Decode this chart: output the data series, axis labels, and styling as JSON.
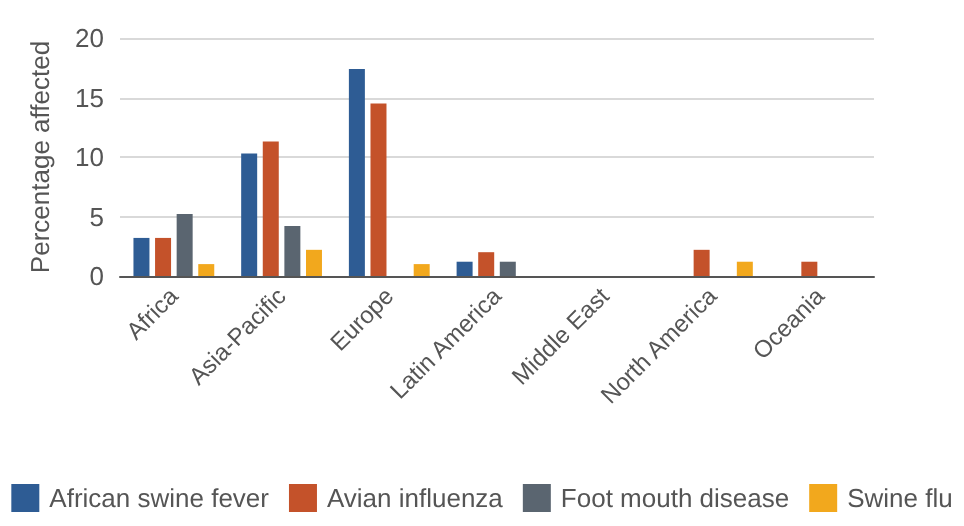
{
  "chart_data": {
    "type": "bar",
    "ylabel": "Percentage affected",
    "categories": [
      "Africa",
      "Asia-Pacific",
      "Europe",
      "Latin America",
      "Middle East",
      "North America",
      "Oceania"
    ],
    "series": [
      {
        "name": "African swine fever",
        "color": "#2e5c94",
        "values": [
          3.2,
          10.3,
          17.4,
          1.2,
          null,
          null,
          null
        ]
      },
      {
        "name": "Avian influenza",
        "color": "#c4522a",
        "values": [
          3.2,
          11.3,
          14.5,
          2.0,
          null,
          2.2,
          1.2
        ]
      },
      {
        "name": "Foot mouth disease",
        "color": "#5a6570",
        "values": [
          5.2,
          4.2,
          null,
          1.2,
          null,
          null,
          null
        ]
      },
      {
        "name": "Swine flu",
        "color": "#f2a81d",
        "values": [
          1.0,
          2.2,
          1.0,
          null,
          null,
          1.2,
          null
        ]
      }
    ],
    "ylim": [
      0,
      20
    ],
    "yticks": [
      0,
      5,
      10,
      15,
      20
    ],
    "grid": "y",
    "legend": "bottom"
  }
}
